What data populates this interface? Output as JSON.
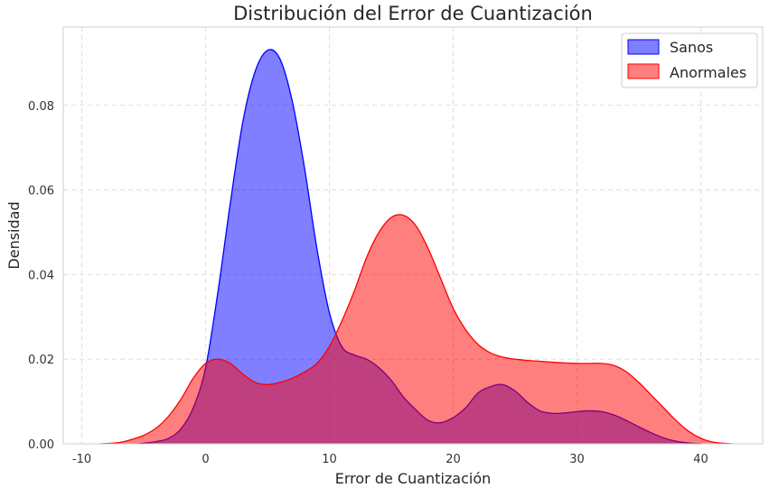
{
  "chart_data": {
    "type": "area",
    "title": "Distribución del Error de Cuantización",
    "xlabel": "Error de Cuantización",
    "ylabel": "Densidad",
    "xlim": [
      -11.5,
      45
    ],
    "ylim": [
      0,
      0.0985
    ],
    "xticks": [
      -10,
      0,
      10,
      20,
      30,
      40
    ],
    "yticks": [
      0.0,
      0.02,
      0.04,
      0.06,
      0.08
    ],
    "ytick_labels": [
      "0.00",
      "0.02",
      "0.04",
      "0.06",
      "0.08"
    ],
    "grid": true,
    "legend_position": "top-right",
    "series": [
      {
        "name": "Sanos",
        "fill": "#0000ff",
        "line": "#0000ff",
        "x": [
          -5.5,
          -4,
          -3,
          -2,
          -1,
          0,
          1,
          2,
          3,
          4,
          5,
          6,
          7,
          8,
          9,
          10,
          11,
          12,
          13,
          14,
          15,
          16,
          17,
          18,
          19,
          20,
          21,
          22,
          23,
          24,
          25,
          26,
          27,
          28,
          29,
          30,
          31,
          32,
          33,
          34,
          35,
          36,
          37,
          38,
          39,
          40
        ],
        "y": [
          0.0,
          0.0005,
          0.0013,
          0.0035,
          0.0085,
          0.018,
          0.036,
          0.057,
          0.076,
          0.088,
          0.093,
          0.091,
          0.081,
          0.065,
          0.046,
          0.031,
          0.023,
          0.021,
          0.02,
          0.018,
          0.015,
          0.011,
          0.008,
          0.0055,
          0.005,
          0.0062,
          0.0085,
          0.012,
          0.0135,
          0.014,
          0.0125,
          0.0098,
          0.0078,
          0.0072,
          0.0073,
          0.0076,
          0.0078,
          0.0076,
          0.0068,
          0.0055,
          0.004,
          0.0026,
          0.0014,
          0.0006,
          0.0002,
          0.0
        ]
      },
      {
        "name": "Anormales",
        "fill": "#ff0000",
        "line": "#ff0000",
        "x": [
          -8.5,
          -7,
          -6,
          -5,
          -4,
          -3,
          -2,
          -1,
          0,
          1,
          2,
          3,
          4,
          5,
          6,
          7,
          8,
          9,
          10,
          11,
          12,
          13,
          14,
          15,
          16,
          17,
          18,
          19,
          20,
          21,
          22,
          23,
          24,
          25,
          26,
          27,
          28,
          29,
          30,
          31,
          32,
          33,
          34,
          35,
          36,
          37,
          38,
          39,
          40,
          41,
          42.5
        ],
        "y": [
          0.0,
          0.0003,
          0.001,
          0.002,
          0.0037,
          0.0065,
          0.0105,
          0.0155,
          0.019,
          0.02,
          0.019,
          0.0165,
          0.0145,
          0.014,
          0.0145,
          0.0155,
          0.017,
          0.019,
          0.023,
          0.029,
          0.036,
          0.044,
          0.05,
          0.0535,
          0.054,
          0.0515,
          0.046,
          0.039,
          0.032,
          0.027,
          0.0235,
          0.0215,
          0.0205,
          0.02,
          0.0197,
          0.0195,
          0.0193,
          0.0191,
          0.019,
          0.019,
          0.019,
          0.0185,
          0.017,
          0.0145,
          0.0115,
          0.0085,
          0.0055,
          0.003,
          0.0013,
          0.0004,
          0.0
        ]
      }
    ]
  }
}
